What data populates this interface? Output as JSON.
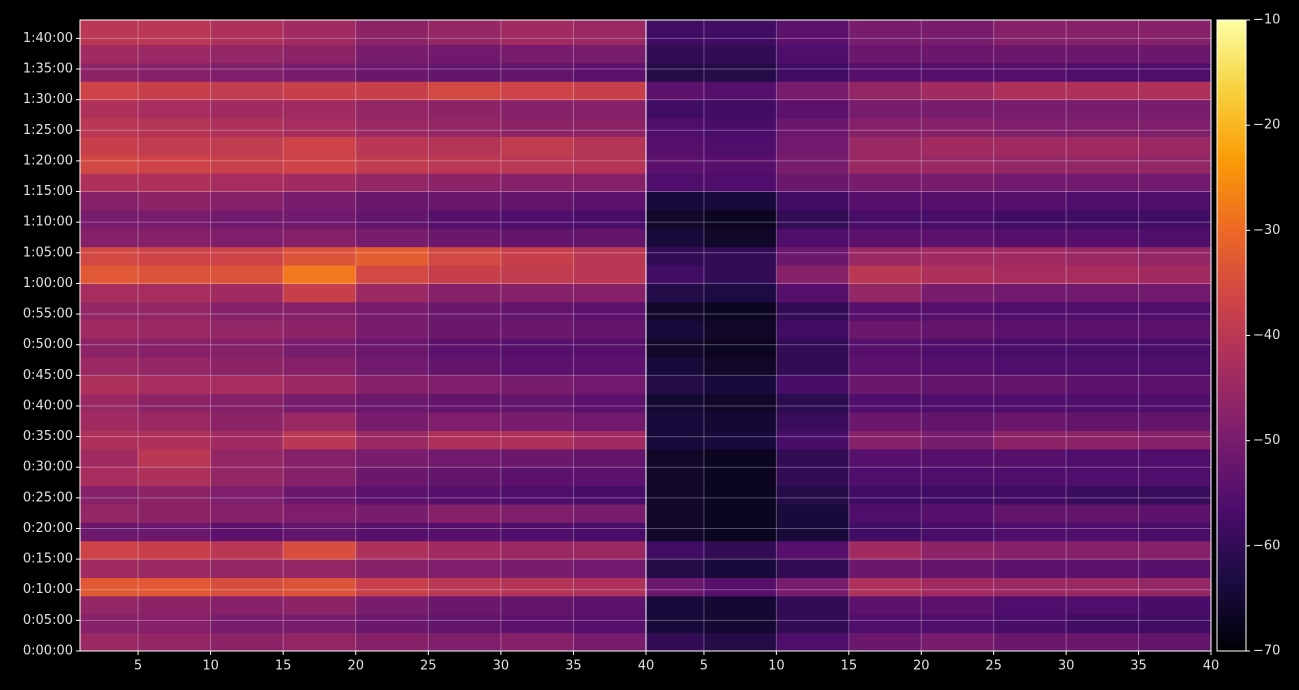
{
  "chart_data": {
    "type": "heatmap",
    "ylim": [
      0,
      6180
    ],
    "yticks": [
      {
        "value": 0,
        "label": "0:00:00"
      },
      {
        "value": 300,
        "label": "0:05:00"
      },
      {
        "value": 600,
        "label": "0:10:00"
      },
      {
        "value": 900,
        "label": "0:15:00"
      },
      {
        "value": 1200,
        "label": "0:20:00"
      },
      {
        "value": 1500,
        "label": "0:25:00"
      },
      {
        "value": 1800,
        "label": "0:30:00"
      },
      {
        "value": 2100,
        "label": "0:35:00"
      },
      {
        "value": 2400,
        "label": "0:40:00"
      },
      {
        "value": 2700,
        "label": "0:45:00"
      },
      {
        "value": 3000,
        "label": "0:50:00"
      },
      {
        "value": 3300,
        "label": "0:55:00"
      },
      {
        "value": 3600,
        "label": "1:00:00"
      },
      {
        "value": 3900,
        "label": "1:05:00"
      },
      {
        "value": 4200,
        "label": "1:10:00"
      },
      {
        "value": 4500,
        "label": "1:15:00"
      },
      {
        "value": 4800,
        "label": "1:20:00"
      },
      {
        "value": 5100,
        "label": "1:25:00"
      },
      {
        "value": 5400,
        "label": "1:30:00"
      },
      {
        "value": 5700,
        "label": "1:35:00"
      },
      {
        "value": 6000,
        "label": "1:40:00"
      }
    ],
    "ybins": [
      0,
      180,
      360,
      540,
      720,
      900,
      1080,
      1260,
      1440,
      1620,
      1800,
      1980,
      2160,
      2340,
      2520,
      2700,
      2880,
      3060,
      3240,
      3420,
      3600,
      3780,
      3960,
      4140,
      4320,
      4500,
      4680,
      4860,
      5040,
      5220,
      5400,
      5580,
      5760,
      5940,
      6180
    ],
    "grid": true,
    "colormap": [
      "#000004",
      "#1b0c41",
      "#4a0c6b",
      "#781c6d",
      "#a52c60",
      "#cf4446",
      "#ed6925",
      "#fb9b06",
      "#f7d13d",
      "#fcffa4"
    ],
    "zlim": [
      -70,
      -10
    ],
    "zticks": [
      {
        "value": -70,
        "label": "−70"
      },
      {
        "value": -60,
        "label": "−60"
      },
      {
        "value": -50,
        "label": "−50"
      },
      {
        "value": -40,
        "label": "−40"
      },
      {
        "value": -30,
        "label": "−30"
      },
      {
        "value": -20,
        "label": "−20"
      },
      {
        "value": -10,
        "label": "−10"
      }
    ],
    "panels": [
      {
        "xlim": [
          1,
          40
        ],
        "xticks": [
          5,
          10,
          15,
          20,
          25,
          30,
          35,
          40
        ],
        "xbins": [
          1,
          5,
          10,
          15,
          20,
          25,
          30,
          35,
          40
        ],
        "z": [
          [
            -45,
            -46,
            -47,
            -46,
            -48,
            -49,
            -48,
            -50
          ],
          [
            -48,
            -48,
            -50,
            -50,
            -52,
            -53,
            -54,
            -55
          ],
          [
            -46,
            -47,
            -48,
            -47,
            -50,
            -52,
            -53,
            -54
          ],
          [
            -33,
            -33,
            -35,
            -34,
            -38,
            -40,
            -41,
            -42
          ],
          [
            -44,
            -45,
            -46,
            -46,
            -48,
            -49,
            -50,
            -51
          ],
          [
            -37,
            -38,
            -40,
            -35,
            -42,
            -44,
            -45,
            -45
          ],
          [
            -52,
            -52,
            -54,
            -53,
            -55,
            -55,
            -56,
            -57
          ],
          [
            -46,
            -47,
            -48,
            -49,
            -50,
            -48,
            -49,
            -50
          ],
          [
            -48,
            -47,
            -49,
            -52,
            -54,
            -55,
            -56,
            -57
          ],
          [
            -43,
            -42,
            -46,
            -48,
            -52,
            -53,
            -54,
            -54
          ],
          [
            -44,
            -40,
            -46,
            -48,
            -50,
            -51,
            -52,
            -53
          ],
          [
            -42,
            -42,
            -44,
            -40,
            -45,
            -42,
            -42,
            -44
          ],
          [
            -44,
            -45,
            -47,
            -45,
            -50,
            -49,
            -50,
            -51
          ],
          [
            -45,
            -47,
            -48,
            -50,
            -52,
            -53,
            -53,
            -54
          ],
          [
            -42,
            -43,
            -43,
            -45,
            -48,
            -49,
            -50,
            -51
          ],
          [
            -45,
            -46,
            -47,
            -48,
            -51,
            -53,
            -54,
            -54
          ],
          [
            -47,
            -48,
            -48,
            -50,
            -52,
            -54,
            -55,
            -55
          ],
          [
            -44,
            -45,
            -46,
            -47,
            -50,
            -52,
            -52,
            -53
          ],
          [
            -46,
            -46,
            -48,
            -48,
            -50,
            -52,
            -53,
            -54
          ],
          [
            -43,
            -43,
            -44,
            -38,
            -45,
            -48,
            -48,
            -48
          ],
          [
            -33,
            -34,
            -34,
            -28,
            -36,
            -38,
            -39,
            -40
          ],
          [
            -36,
            -37,
            -37,
            -34,
            -32,
            -36,
            -38,
            -40
          ],
          [
            -48,
            -48,
            -49,
            -48,
            -50,
            -52,
            -53,
            -53
          ],
          [
            -50,
            -50,
            -51,
            -51,
            -53,
            -55,
            -56,
            -57
          ],
          [
            -48,
            -47,
            -48,
            -50,
            -52,
            -52,
            -53,
            -54
          ],
          [
            -42,
            -42,
            -43,
            -44,
            -46,
            -47,
            -48,
            -48
          ],
          [
            -36,
            -37,
            -38,
            -37,
            -39,
            -40,
            -40,
            -41
          ],
          [
            -38,
            -39,
            -39,
            -37,
            -40,
            -41,
            -39,
            -41
          ],
          [
            -40,
            -41,
            -42,
            -43,
            -45,
            -46,
            -47,
            -47
          ],
          [
            -42,
            -43,
            -44,
            -44,
            -46,
            -47,
            -48,
            -48
          ],
          [
            -37,
            -38,
            -39,
            -38,
            -38,
            -36,
            -37,
            -38
          ],
          [
            -47,
            -48,
            -49,
            -50,
            -52,
            -53,
            -53,
            -54
          ],
          [
            -44,
            -45,
            -46,
            -47,
            -50,
            -51,
            -50,
            -50
          ],
          [
            -40,
            -40,
            -42,
            -44,
            -47,
            -46,
            -44,
            -45
          ]
        ]
      },
      {
        "xlim": [
          1,
          40
        ],
        "xticks": [
          5,
          10,
          15,
          20,
          25,
          30,
          35,
          40
        ],
        "xbins": [
          1,
          5,
          10,
          15,
          20,
          25,
          30,
          35,
          40
        ],
        "z": [
          [
            -60,
            -62,
            -56,
            -52,
            -50,
            -52,
            -52,
            -53
          ],
          [
            -64,
            -65,
            -60,
            -56,
            -56,
            -57,
            -58,
            -58
          ],
          [
            -64,
            -65,
            -60,
            -54,
            -54,
            -56,
            -56,
            -57
          ],
          [
            -52,
            -55,
            -50,
            -42,
            -44,
            -45,
            -45,
            -46
          ],
          [
            -62,
            -64,
            -60,
            -52,
            -53,
            -54,
            -54,
            -55
          ],
          [
            -58,
            -60,
            -55,
            -44,
            -47,
            -48,
            -48,
            -48
          ],
          [
            -66,
            -67,
            -64,
            -58,
            -57,
            -56,
            -56,
            -57
          ],
          [
            -66,
            -67,
            -64,
            -56,
            -55,
            -53,
            -53,
            -54
          ],
          [
            -66,
            -67,
            -62,
            -58,
            -58,
            -58,
            -59,
            -59
          ],
          [
            -66,
            -67,
            -60,
            -56,
            -56,
            -56,
            -56,
            -56
          ],
          [
            -66,
            -67,
            -60,
            -55,
            -55,
            -55,
            -56,
            -56
          ],
          [
            -64,
            -64,
            -57,
            -48,
            -50,
            -47,
            -47,
            -48
          ],
          [
            -64,
            -65,
            -59,
            -52,
            -53,
            -52,
            -53,
            -53
          ],
          [
            -65,
            -66,
            -61,
            -56,
            -56,
            -56,
            -56,
            -56
          ],
          [
            -62,
            -64,
            -57,
            -52,
            -53,
            -53,
            -54,
            -54
          ],
          [
            -64,
            -66,
            -60,
            -54,
            -55,
            -56,
            -56,
            -56
          ],
          [
            -66,
            -67,
            -60,
            -55,
            -56,
            -57,
            -57,
            -57
          ],
          [
            -64,
            -66,
            -58,
            -52,
            -53,
            -54,
            -54,
            -54
          ],
          [
            -66,
            -67,
            -60,
            -55,
            -55,
            -56,
            -56,
            -56
          ],
          [
            -62,
            -63,
            -55,
            -46,
            -50,
            -51,
            -51,
            -51
          ],
          [
            -58,
            -60,
            -48,
            -40,
            -42,
            -43,
            -43,
            -44
          ],
          [
            -60,
            -60,
            -52,
            -45,
            -44,
            -44,
            -45,
            -46
          ],
          [
            -64,
            -66,
            -56,
            -54,
            -54,
            -55,
            -55,
            -56
          ],
          [
            -66,
            -67,
            -60,
            -57,
            -57,
            -58,
            -58,
            -58
          ],
          [
            -64,
            -64,
            -58,
            -55,
            -55,
            -55,
            -56,
            -56
          ],
          [
            -56,
            -56,
            -52,
            -50,
            -50,
            -51,
            -51,
            -51
          ],
          [
            -54,
            -55,
            -50,
            -45,
            -45,
            -46,
            -46,
            -46
          ],
          [
            -55,
            -56,
            -51,
            -45,
            -44,
            -44,
            -44,
            -45
          ],
          [
            -56,
            -57,
            -52,
            -48,
            -48,
            -49,
            -49,
            -49
          ],
          [
            -58,
            -58,
            -54,
            -50,
            -50,
            -50,
            -50,
            -50
          ],
          [
            -54,
            -55,
            -50,
            -46,
            -44,
            -42,
            -42,
            -42
          ],
          [
            -62,
            -62,
            -58,
            -55,
            -55,
            -55,
            -56,
            -56
          ],
          [
            -60,
            -60,
            -56,
            -52,
            -52,
            -52,
            -52,
            -52
          ],
          [
            -58,
            -58,
            -54,
            -50,
            -50,
            -48,
            -48,
            -48
          ]
        ]
      }
    ]
  }
}
